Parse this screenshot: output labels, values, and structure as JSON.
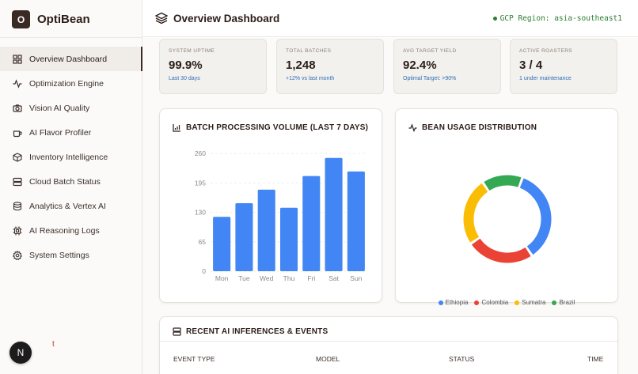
{
  "brand": {
    "logo_letter": "O",
    "name": "OptiBean"
  },
  "sidebar": {
    "items": [
      {
        "label": "Overview Dashboard",
        "icon": "grid-icon",
        "active": true
      },
      {
        "label": "Optimization Engine",
        "icon": "activity-icon",
        "active": false
      },
      {
        "label": "Vision AI Quality",
        "icon": "camera-icon",
        "active": false
      },
      {
        "label": "AI Flavor Profiler",
        "icon": "coffee-cup-icon",
        "active": false
      },
      {
        "label": "Inventory Intelligence",
        "icon": "package-icon",
        "active": false
      },
      {
        "label": "Cloud Batch Status",
        "icon": "server-icon",
        "active": false
      },
      {
        "label": "Analytics & Vertex AI",
        "icon": "database-icon",
        "active": false
      },
      {
        "label": "AI Reasoning Logs",
        "icon": "cpu-icon",
        "active": false
      },
      {
        "label": "System Settings",
        "icon": "gear-icon",
        "active": false
      }
    ],
    "badge_letter": "N",
    "badge_trail": "t"
  },
  "header": {
    "title": "Overview Dashboard",
    "region": "GCP Region: asia-southeast1"
  },
  "stats": [
    {
      "label": "System Uptime",
      "value": "99.9%",
      "sub": "Last 30 days"
    },
    {
      "label": "Total Batches",
      "value": "1,248",
      "sub": "+12% vs last month"
    },
    {
      "label": "Avg Target Yield",
      "value": "92.4%",
      "sub": "Optimal Target: >90%"
    },
    {
      "label": "Active Roasters",
      "value": "3 / 4",
      "sub": "1 under maintenance"
    }
  ],
  "batch_card": {
    "title": "BATCH PROCESSING VOLUME (LAST 7 DAYS)"
  },
  "bean_card": {
    "title": "BEAN USAGE DISTRIBUTION"
  },
  "events_card": {
    "title": "RECENT AI INFERENCES & EVENTS",
    "columns": [
      "EVENT TYPE",
      "MODEL",
      "STATUS",
      "TIME"
    ]
  },
  "colors": {
    "accent": "#3a2a24",
    "bar": "#4285f4",
    "link": "#2f6fb6",
    "region": "#2e7d32"
  },
  "chart_data": [
    {
      "type": "bar",
      "title": "BATCH PROCESSING VOLUME (LAST 7 DAYS)",
      "categories": [
        "Mon",
        "Tue",
        "Wed",
        "Thu",
        "Fri",
        "Sat",
        "Sun"
      ],
      "values": [
        120,
        150,
        180,
        140,
        210,
        250,
        220
      ],
      "yticks": [
        0,
        65,
        130,
        195,
        260
      ],
      "ylim": [
        0,
        260
      ],
      "grid": true
    },
    {
      "type": "pie",
      "title": "BEAN USAGE DISTRIBUTION",
      "donut": true,
      "legend": "bottom",
      "slices": [
        {
          "name": "Ethiopia",
          "value": 35,
          "color": "#4285f4"
        },
        {
          "name": "Colombia",
          "value": 25,
          "color": "#ea4335"
        },
        {
          "name": "Sumatra",
          "value": 25,
          "color": "#fbbc04"
        },
        {
          "name": "Brazil",
          "value": 15,
          "color": "#34a853"
        }
      ]
    }
  ]
}
